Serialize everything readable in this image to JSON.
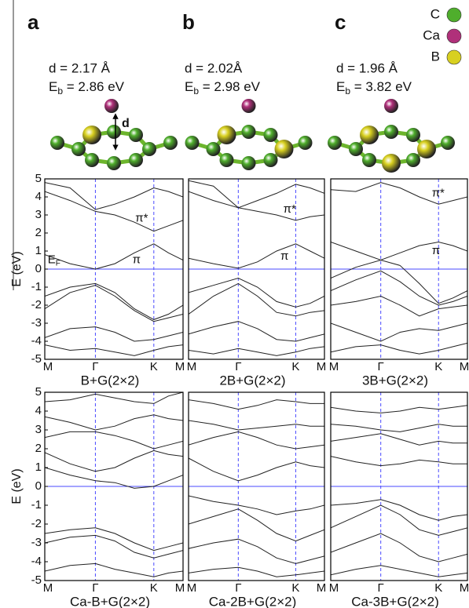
{
  "structures": [
    {
      "label": "a",
      "d": "d = 2.17 Å",
      "eb_symbol": "E",
      "eb_sub": "b",
      "eb_value": " = 2.86 eV",
      "arrow_label": "d"
    },
    {
      "label": "b",
      "d": "d =  2.02Å",
      "eb_symbol": "E",
      "eb_sub": "b",
      "eb_value": " =  2.98 eV"
    },
    {
      "label": "c",
      "d": "d = 1.96 Å",
      "eb_symbol": "E",
      "eb_sub": "b",
      "eb_value": " = 3.82 eV"
    }
  ],
  "legend": [
    {
      "label": "C",
      "color": "#4fae2c"
    },
    {
      "label": "Ca",
      "color": "#b0307a"
    },
    {
      "label": "B",
      "color": "#d8d020"
    }
  ],
  "chart_data": [
    {
      "type": "line",
      "xlabel": "B+G(2×2)",
      "ylabel": "E (eV)",
      "color": "#222222",
      "ref_color": "#4a4aff",
      "fermi_level": 0,
      "xlim": [
        0,
        2.366
      ],
      "ylim": [
        -5,
        5
      ],
      "yticks": [
        -5,
        -4,
        -3,
        -2,
        -1,
        0,
        1,
        2,
        3,
        4,
        5
      ],
      "xticks": [
        {
          "value": 0,
          "label": "M"
        },
        {
          "value": 0.866,
          "label": "Γ"
        },
        {
          "value": 1.866,
          "label": "K"
        },
        {
          "value": 2.366,
          "label": "M"
        }
      ],
      "x": [
        0,
        0.433,
        0.866,
        1.2,
        1.533,
        1.866,
        2.116,
        2.366
      ],
      "series": [
        {
          "values": [
            4.3,
            3.8,
            3.2,
            3.0,
            2.6,
            2.1,
            2.4,
            2.7
          ]
        },
        {
          "values": [
            4.8,
            4.5,
            3.3,
            3.6,
            4.0,
            4.5,
            4.3,
            4.0
          ]
        },
        {
          "values": [
            0.8,
            0.3,
            0.0,
            0.3,
            0.9,
            1.4,
            0.9,
            0.5
          ]
        },
        {
          "values": [
            -1.5,
            -1.0,
            -0.8,
            -1.3,
            -2.2,
            -2.8,
            -2.5,
            -2.0
          ]
        },
        {
          "values": [
            -2.2,
            -1.3,
            -0.9,
            -1.5,
            -2.3,
            -2.9,
            -2.7,
            -2.5
          ]
        },
        {
          "values": [
            -3.8,
            -3.3,
            -3.2,
            -3.5,
            -4.0,
            -3.9,
            -3.7,
            -3.5
          ]
        },
        {
          "values": [
            -4.2,
            -4.5,
            -4.4,
            -4.6,
            -4.8,
            -4.5,
            -4.3,
            -4.2
          ]
        }
      ],
      "annotations": [
        {
          "text": "π*",
          "x": 1.55,
          "y": 2.8
        },
        {
          "text": "π",
          "x": 1.5,
          "y": 0.5
        },
        {
          "text": "E",
          "sub": "F",
          "x": 0.05,
          "y": 0.5
        }
      ]
    },
    {
      "type": "line",
      "xlabel": "2B+G(2×2)",
      "color": "#222222",
      "ref_color": "#4a4aff",
      "fermi_level": 0,
      "xlim": [
        0,
        2.366
      ],
      "ylim": [
        -5,
        5
      ],
      "xticks": [
        {
          "value": 0,
          "label": "M"
        },
        {
          "value": 0.866,
          "label": "Γ"
        },
        {
          "value": 1.866,
          "label": "K"
        },
        {
          "value": 2.366,
          "label": "M"
        }
      ],
      "x": [
        0,
        0.433,
        0.866,
        1.2,
        1.533,
        1.866,
        2.116,
        2.366
      ],
      "series": [
        {
          "values": [
            4.3,
            3.8,
            3.4,
            3.2,
            3.0,
            2.7,
            2.9,
            3.0
          ]
        },
        {
          "values": [
            4.9,
            4.6,
            3.4,
            3.8,
            4.2,
            4.7,
            4.5,
            4.2
          ]
        },
        {
          "values": [
            0.6,
            0.3,
            0.05,
            0.4,
            1.0,
            1.4,
            1.0,
            0.6
          ]
        },
        {
          "values": [
            -1.3,
            -0.9,
            -0.5,
            -1.0,
            -1.8,
            -2.1,
            -1.9,
            -1.5
          ]
        },
        {
          "values": [
            -2.5,
            -1.5,
            -0.8,
            -1.5,
            -2.4,
            -2.6,
            -2.4,
            -2.3
          ]
        },
        {
          "values": [
            -3.6,
            -3.2,
            -2.9,
            -3.3,
            -3.9,
            -4.0,
            -3.8,
            -3.6
          ]
        },
        {
          "values": [
            -4.5,
            -4.7,
            -4.4,
            -4.6,
            -4.8,
            -4.6,
            -4.4,
            -4.3
          ]
        }
      ],
      "annotations": [
        {
          "text": "π*",
          "x": 1.65,
          "y": 3.3
        },
        {
          "text": "π",
          "x": 1.6,
          "y": 0.7
        }
      ]
    },
    {
      "type": "line",
      "xlabel": "3B+G(2×2)",
      "color": "#222222",
      "ref_color": "#4a4aff",
      "fermi_level": 0,
      "xlim": [
        0,
        2.366
      ],
      "ylim": [
        -5,
        5
      ],
      "xticks": [
        {
          "value": 0,
          "label": "M"
        },
        {
          "value": 0.866,
          "label": "Γ"
        },
        {
          "value": 1.866,
          "label": "K"
        },
        {
          "value": 2.366,
          "label": "M"
        }
      ],
      "x": [
        0,
        0.433,
        0.866,
        1.2,
        1.533,
        1.866,
        2.116,
        2.366
      ],
      "series": [
        {
          "values": [
            4.4,
            4.3,
            4.8,
            4.5,
            4.0,
            3.6,
            3.8,
            4.0
          ]
        },
        {
          "values": [
            1.5,
            1.0,
            0.5,
            0.9,
            1.3,
            1.5,
            1.3,
            1.0
          ]
        },
        {
          "values": [
            -0.5,
            0.1,
            0.5,
            0.2,
            -0.8,
            -1.9,
            -1.6,
            -1.2
          ]
        },
        {
          "values": [
            -1.2,
            -0.6,
            -0.1,
            -0.7,
            -1.5,
            -2.0,
            -1.8,
            -1.5
          ]
        },
        {
          "values": [
            -2.0,
            -1.8,
            -1.5,
            -2.0,
            -2.6,
            -2.2,
            -2.1,
            -2.0
          ]
        },
        {
          "values": [
            -3.0,
            -3.5,
            -4.0,
            -3.5,
            -3.3,
            -3.4,
            -3.2,
            -3.0
          ]
        },
        {
          "values": [
            -4.6,
            -4.3,
            -4.2,
            -4.5,
            -4.7,
            -4.5,
            -4.3,
            -4.1
          ]
        }
      ],
      "annotations": [
        {
          "text": "π*",
          "x": 1.75,
          "y": 4.2
        },
        {
          "text": "π",
          "x": 1.75,
          "y": 1.0
        }
      ]
    },
    {
      "type": "line",
      "xlabel": "Ca-B+G(2×2)",
      "ylabel": "E (eV)",
      "color": "#222222",
      "ref_color": "#4a4aff",
      "fermi_level": 0,
      "xlim": [
        0,
        2.366
      ],
      "ylim": [
        -5,
        5
      ],
      "yticks": [
        -5,
        -4,
        -3,
        -2,
        -1,
        0,
        1,
        2,
        3,
        4,
        5
      ],
      "xticks": [
        {
          "value": 0,
          "label": "M"
        },
        {
          "value": 0.866,
          "label": "Γ"
        },
        {
          "value": 1.866,
          "label": "K"
        },
        {
          "value": 2.366,
          "label": "M"
        }
      ],
      "x": [
        0,
        0.433,
        0.866,
        1.2,
        1.533,
        1.866,
        2.116,
        2.366
      ],
      "series": [
        {
          "values": [
            4.5,
            4.6,
            4.9,
            4.7,
            4.5,
            4.4,
            4.8,
            5.0
          ]
        },
        {
          "values": [
            3.7,
            3.4,
            3.0,
            3.2,
            3.6,
            3.8,
            3.6,
            3.5
          ]
        },
        {
          "values": [
            2.6,
            2.9,
            2.9,
            2.7,
            2.4,
            2.0,
            2.2,
            2.4
          ]
        },
        {
          "values": [
            1.8,
            1.2,
            0.8,
            1.0,
            1.5,
            1.9,
            1.7,
            1.6
          ]
        },
        {
          "values": [
            1.0,
            0.6,
            0.3,
            0.2,
            -0.1,
            0.0,
            0.3,
            0.6
          ]
        },
        {
          "values": [
            -2.5,
            -2.3,
            -2.2,
            -2.5,
            -3.0,
            -3.4,
            -3.2,
            -3.0
          ]
        },
        {
          "values": [
            -3.0,
            -2.7,
            -2.6,
            -2.9,
            -3.5,
            -3.8,
            -3.6,
            -3.4
          ]
        },
        {
          "values": [
            -4.5,
            -4.2,
            -4.1,
            -4.4,
            -4.6,
            -4.8,
            -4.6,
            -4.5
          ]
        }
      ]
    },
    {
      "type": "line",
      "xlabel": "Ca-2B+G(2×2)",
      "color": "#222222",
      "ref_color": "#4a4aff",
      "fermi_level": 0,
      "xlim": [
        0,
        2.366
      ],
      "ylim": [
        -5,
        5
      ],
      "xticks": [
        {
          "value": 0,
          "label": "M"
        },
        {
          "value": 0.866,
          "label": "Γ"
        },
        {
          "value": 1.866,
          "label": "K"
        },
        {
          "value": 2.366,
          "label": "M"
        }
      ],
      "x": [
        0,
        0.433,
        0.866,
        1.2,
        1.533,
        1.866,
        2.116,
        2.366
      ],
      "series": [
        {
          "values": [
            4.6,
            4.4,
            4.1,
            4.3,
            4.6,
            4.5,
            4.4,
            4.4
          ]
        },
        {
          "values": [
            3.5,
            3.3,
            3.0,
            3.1,
            3.2,
            3.3,
            3.2,
            3.2
          ]
        },
        {
          "values": [
            2.2,
            2.6,
            2.9,
            2.6,
            2.2,
            2.0,
            2.1,
            2.2
          ]
        },
        {
          "values": [
            1.5,
            0.8,
            0.3,
            0.6,
            1.0,
            1.3,
            1.1,
            1.0
          ]
        },
        {
          "values": [
            -0.5,
            -0.8,
            -1.0,
            -1.2,
            -1.5,
            -1.3,
            -1.2,
            -1.0
          ]
        },
        {
          "values": [
            -2.0,
            -1.6,
            -1.2,
            -1.8,
            -2.5,
            -2.9,
            -2.6,
            -2.3
          ]
        },
        {
          "values": [
            -3.3,
            -3.0,
            -2.8,
            -3.2,
            -3.8,
            -4.1,
            -3.9,
            -3.7
          ]
        },
        {
          "values": [
            -4.6,
            -4.4,
            -4.3,
            -4.5,
            -4.8,
            -4.7,
            -4.6,
            -4.5
          ]
        }
      ]
    },
    {
      "type": "line",
      "xlabel": "Ca-3B+G(2×2)",
      "color": "#222222",
      "ref_color": "#4a4aff",
      "fermi_level": 0,
      "xlim": [
        0,
        2.366
      ],
      "ylim": [
        -5,
        5
      ],
      "xticks": [
        {
          "value": 0,
          "label": "M"
        },
        {
          "value": 0.866,
          "label": "Γ"
        },
        {
          "value": 1.866,
          "label": "K"
        },
        {
          "value": 2.366,
          "label": "M"
        }
      ],
      "x": [
        0,
        0.433,
        0.866,
        1.2,
        1.533,
        1.866,
        2.116,
        2.366
      ],
      "series": [
        {
          "values": [
            4.2,
            4.0,
            3.9,
            4.0,
            4.2,
            4.1,
            4.2,
            4.3
          ]
        },
        {
          "values": [
            3.3,
            3.2,
            3.0,
            2.9,
            3.1,
            3.3,
            3.2,
            3.2
          ]
        },
        {
          "values": [
            2.4,
            2.6,
            2.8,
            2.5,
            2.2,
            2.4,
            2.3,
            2.3
          ]
        },
        {
          "values": [
            1.6,
            1.3,
            1.1,
            1.2,
            1.4,
            1.3,
            1.2,
            1.2
          ]
        },
        {
          "values": [
            -1.0,
            -0.9,
            -0.7,
            -1.0,
            -1.5,
            -1.8,
            -1.6,
            -1.5
          ]
        },
        {
          "values": [
            -2.2,
            -1.6,
            -1.0,
            -1.5,
            -2.3,
            -2.6,
            -2.4,
            -2.2
          ]
        },
        {
          "values": [
            -3.5,
            -3.0,
            -2.5,
            -3.0,
            -3.7,
            -4.0,
            -3.8,
            -3.6
          ]
        },
        {
          "values": [
            -4.7,
            -4.4,
            -4.2,
            -4.4,
            -4.6,
            -4.8,
            -4.7,
            -4.6
          ]
        }
      ]
    }
  ]
}
